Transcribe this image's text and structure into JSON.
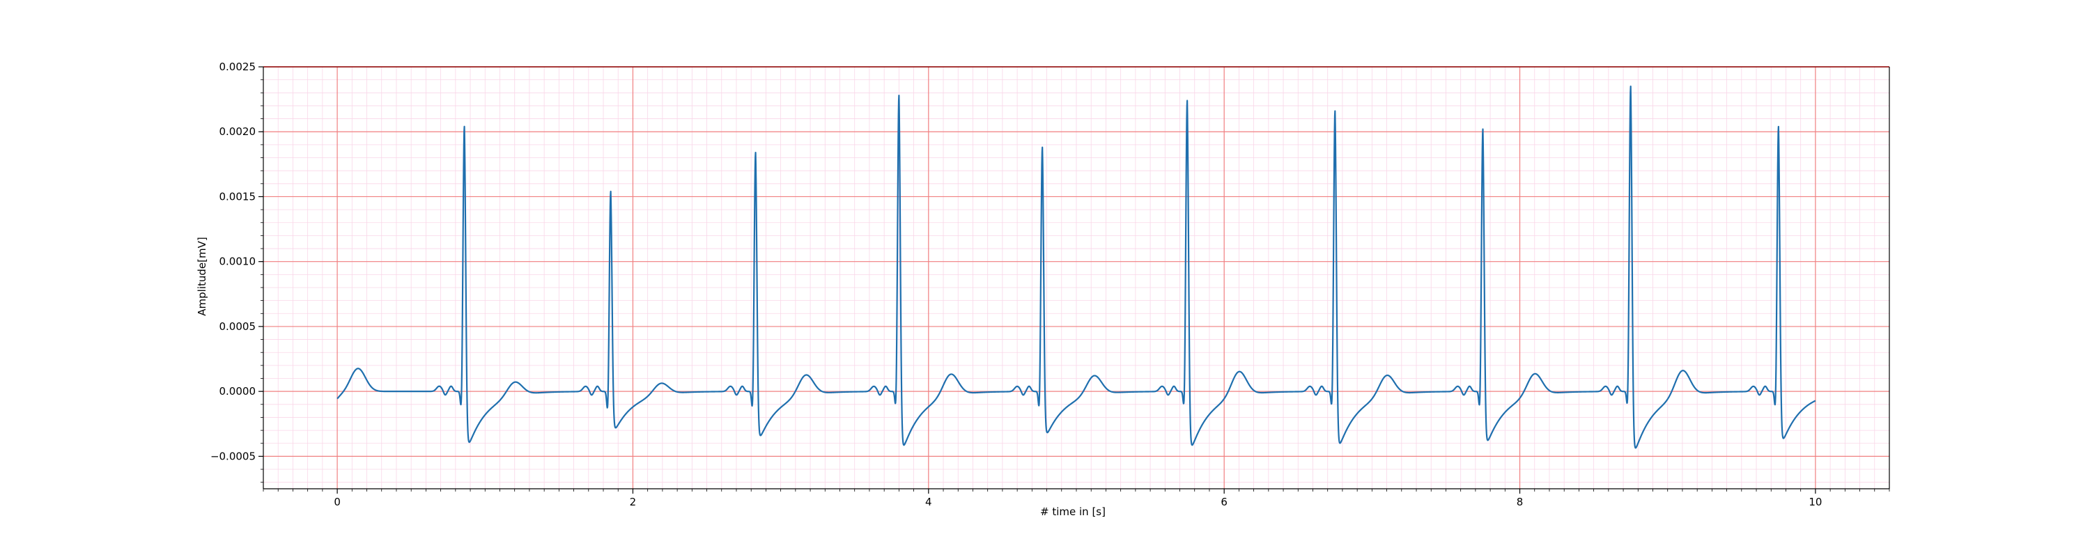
{
  "chart_data": {
    "type": "line",
    "title": "",
    "xlabel": "# time in [s]",
    "ylabel": "Amplitude[mV]",
    "xlim": [
      -0.5,
      10.5
    ],
    "ylim": [
      -0.00075,
      0.0025
    ],
    "x_ticks": [
      0,
      2,
      4,
      6,
      8,
      10
    ],
    "x_tick_labels": [
      "0",
      "2",
      "4",
      "6",
      "8",
      "10"
    ],
    "y_ticks": [
      -0.0005,
      0.0,
      0.0005,
      0.001,
      0.0015,
      0.002,
      0.0025
    ],
    "y_tick_labels": [
      "−0.0005",
      "0.0000",
      "0.0005",
      "0.0010",
      "0.0015",
      "0.0020",
      "0.0025"
    ],
    "grid": true,
    "legend": "none",
    "colors": {
      "line": "#1f6fae",
      "major_grid": "#f08080",
      "minor_grid": "#f9d6e8",
      "axes": "#000000",
      "top_spine": "#8b0000"
    },
    "series": [
      {
        "beats": [
          {
            "t": 0.86,
            "r": 0.00205,
            "s": -0.00053
          },
          {
            "t": 1.85,
            "r": 0.00155,
            "s": -0.00038
          },
          {
            "t": 2.83,
            "r": 0.00185,
            "s": -0.00046
          },
          {
            "t": 3.8,
            "r": 0.00229,
            "s": -0.00056
          },
          {
            "t": 4.77,
            "r": 0.00189,
            "s": -0.00043
          },
          {
            "t": 5.75,
            "r": 0.00225,
            "s": -0.00056
          },
          {
            "t": 6.75,
            "r": 0.00217,
            "s": -0.00054
          },
          {
            "t": 7.75,
            "r": 0.00203,
            "s": -0.00051
          },
          {
            "t": 8.75,
            "r": 0.00236,
            "s": -0.00059
          },
          {
            "t": 9.75,
            "r": 0.00205,
            "s": -0.00049
          }
        ],
        "t_waves": [
          {
            "t": 0.14,
            "h": 0.00018
          },
          {
            "t": 1.2,
            "h": 0.00011
          },
          {
            "t": 2.19,
            "h": 9e-05
          },
          {
            "t": 3.17,
            "h": 0.00016
          },
          {
            "t": 4.15,
            "h": 0.00017
          },
          {
            "t": 5.12,
            "h": 0.00015
          },
          {
            "t": 6.1,
            "h": 0.00019
          },
          {
            "t": 7.1,
            "h": 0.00016
          },
          {
            "t": 8.1,
            "h": 0.00017
          },
          {
            "t": 9.1,
            "h": 0.0002
          }
        ],
        "x_range": [
          0,
          10
        ],
        "start_value": -6e-05,
        "end_value": -1e-05
      }
    ]
  }
}
